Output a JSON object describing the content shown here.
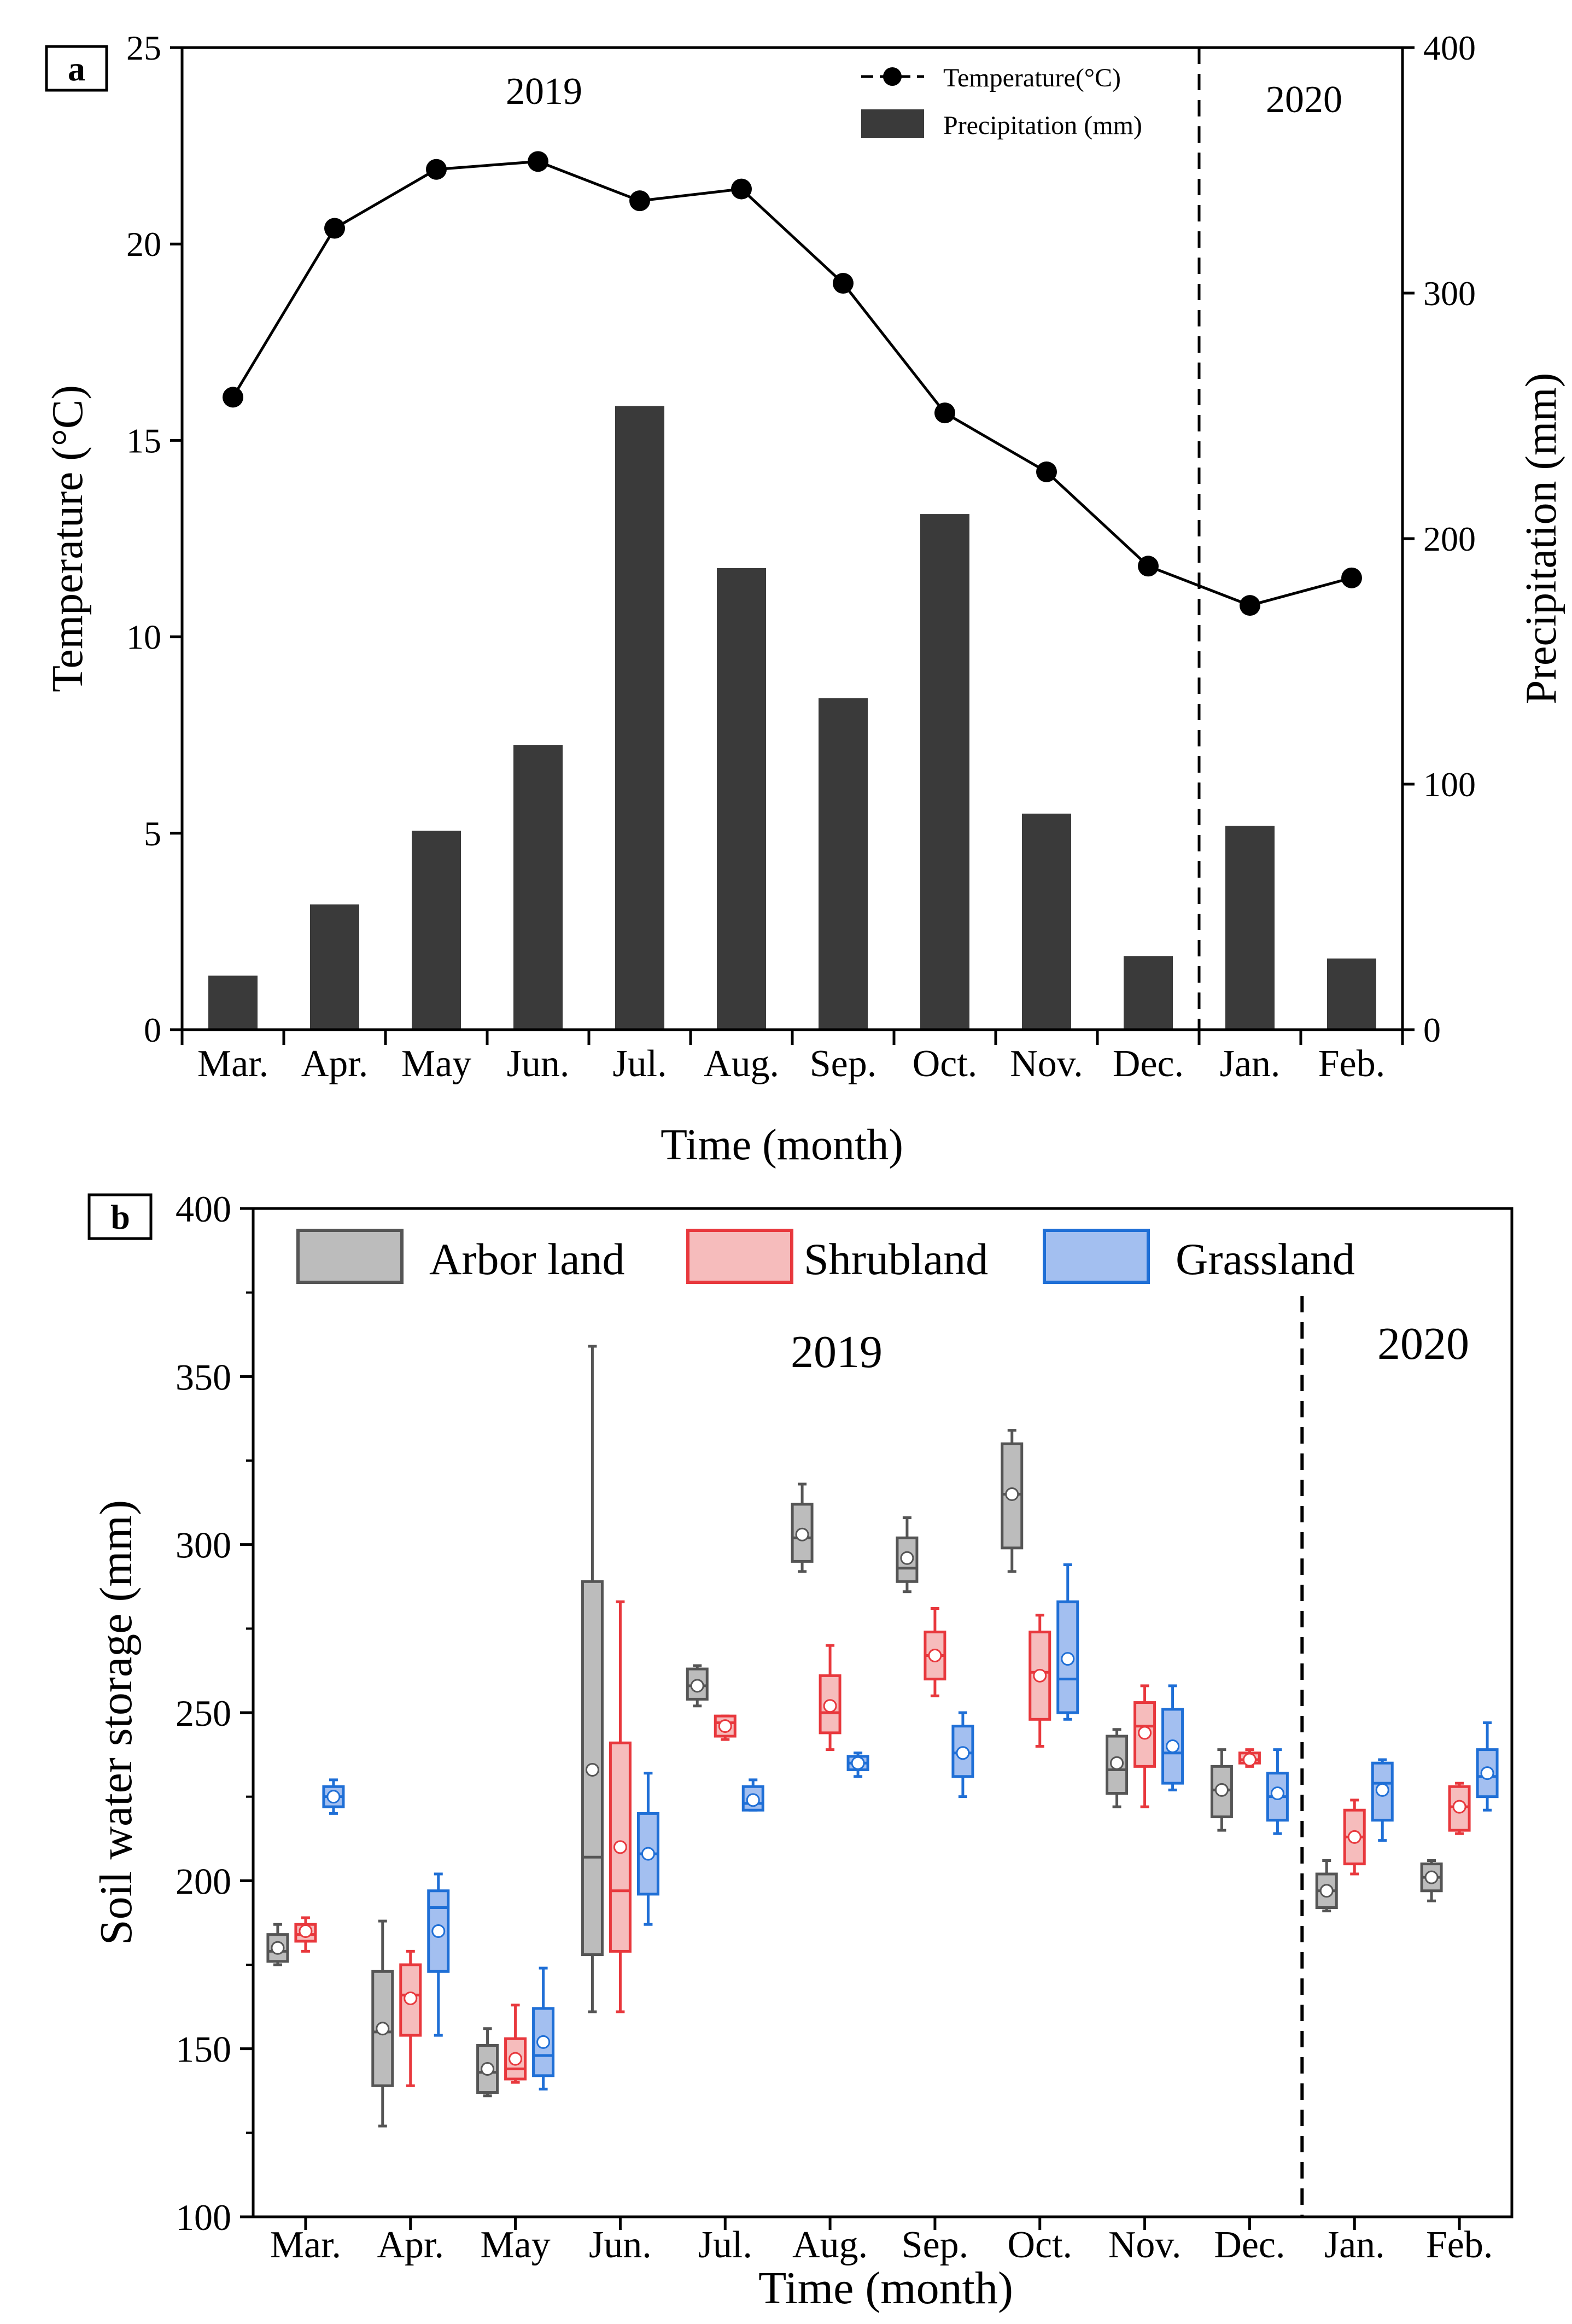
{
  "chart_data": [
    {
      "type": "bar+line",
      "panel_label": "a",
      "categories": [
        "Mar.",
        "Apr.",
        "May",
        "Jun.",
        "Jul.",
        "Aug.",
        "Sep.",
        "Oct.",
        "Nov.",
        "Dec.",
        "Jan.",
        "Feb."
      ],
      "temperature": [
        16.1,
        20.4,
        21.9,
        22.1,
        21.1,
        21.4,
        19.0,
        15.7,
        14.2,
        11.8,
        10.8,
        11.5
      ],
      "precipitation": [
        22,
        51,
        81,
        116,
        254,
        188,
        135,
        210,
        88,
        30,
        83,
        29
      ],
      "xlabel": "Time (month)",
      "ylabel_left": "Temperature (°C)",
      "ylabel_right": "Precipitation (mm)",
      "ylim_left": [
        0,
        25
      ],
      "ylim_right": [
        0,
        400
      ],
      "yticks_left": [
        "0",
        "5",
        "10",
        "15",
        "20",
        "25"
      ],
      "yticks_right": [
        "0",
        "100",
        "200",
        "300",
        "400"
      ],
      "legend": [
        "Temperature(°C)",
        "Precipitation (mm)"
      ],
      "year_labels": [
        "2019",
        "2020"
      ],
      "divider_after_category": "Dec.",
      "colors": {
        "bar": "#3a3a3a",
        "line": "#000000",
        "marker": "#000000"
      }
    },
    {
      "type": "box",
      "panel_label": "b",
      "categories": [
        "Mar.",
        "Apr.",
        "May",
        "Jun.",
        "Jul.",
        "Aug.",
        "Sep.",
        "Oct.",
        "Nov.",
        "Dec.",
        "Jan.",
        "Feb."
      ],
      "xlabel": "Time (month)",
      "ylabel": "Soil water storage (mm)",
      "ylim": [
        100,
        400
      ],
      "yticks": [
        "100",
        "150",
        "200",
        "250",
        "300",
        "350",
        "400"
      ],
      "legend_position": "top",
      "year_labels": [
        "2019",
        "2020"
      ],
      "divider_after_category": "Dec.",
      "series": [
        {
          "name": "Arbor land",
          "edge": "#555555",
          "fill": "#bcbcbc",
          "boxes": [
            {
              "min": 175,
              "q1": 176,
              "median": 179,
              "q3": 184,
              "max": 187,
              "mean": 180
            },
            {
              "min": 127,
              "q1": 139,
              "median": 155,
              "q3": 173,
              "max": 188,
              "mean": 156
            },
            {
              "min": 136,
              "q1": 137,
              "median": 143,
              "q3": 151,
              "max": 156,
              "mean": 144
            },
            {
              "min": 161,
              "q1": 178,
              "median": 207,
              "q3": 289,
              "max": 359,
              "mean": 233
            },
            {
              "min": 252,
              "q1": 254,
              "median": 258,
              "q3": 263,
              "max": 264,
              "mean": 258
            },
            {
              "min": 292,
              "q1": 295,
              "median": 302,
              "q3": 312,
              "max": 318,
              "mean": 303
            },
            {
              "min": 286,
              "q1": 289,
              "median": 293,
              "q3": 302,
              "max": 308,
              "mean": 296
            },
            {
              "min": 292,
              "q1": 299,
              "median": 315,
              "q3": 330,
              "max": 334,
              "mean": 315
            },
            {
              "min": 222,
              "q1": 226,
              "median": 233,
              "q3": 243,
              "max": 245,
              "mean": 235
            },
            {
              "min": 215,
              "q1": 219,
              "median": 227,
              "q3": 234,
              "max": 239,
              "mean": 227
            },
            {
              "min": 191,
              "q1": 192,
              "median": 197,
              "q3": 202,
              "max": 206,
              "mean": 197
            },
            {
              "min": 194,
              "q1": 197,
              "median": 201,
              "q3": 205,
              "max": 206,
              "mean": 201
            }
          ]
        },
        {
          "name": "Shrubland",
          "edge": "#e8383d",
          "fill": "#f6bcbc",
          "boxes": [
            {
              "min": 179,
              "q1": 182,
              "median": 184,
              "q3": 187,
              "max": 189,
              "mean": 185
            },
            {
              "min": 139,
              "q1": 154,
              "median": 166,
              "q3": 175,
              "max": 179,
              "mean": 165
            },
            {
              "min": 140,
              "q1": 141,
              "median": 144,
              "q3": 153,
              "max": 163,
              "mean": 147
            },
            {
              "min": 161,
              "q1": 179,
              "median": 197,
              "q3": 241,
              "max": 283,
              "mean": 210
            },
            {
              "min": 242,
              "q1": 243,
              "median": 247,
              "q3": 249,
              "max": 249,
              "mean": 246
            },
            {
              "min": 239,
              "q1": 244,
              "median": 250,
              "q3": 261,
              "max": 270,
              "mean": 252
            },
            {
              "min": 255,
              "q1": 260,
              "median": 267,
              "q3": 274,
              "max": 281,
              "mean": 267
            },
            {
              "min": 240,
              "q1": 248,
              "median": 262,
              "q3": 274,
              "max": 279,
              "mean": 261
            },
            {
              "min": 222,
              "q1": 234,
              "median": 246,
              "q3": 253,
              "max": 258,
              "mean": 244
            },
            {
              "min": 234,
              "q1": 235,
              "median": 236,
              "q3": 238,
              "max": 239,
              "mean": 236
            },
            {
              "min": 202,
              "q1": 205,
              "median": 213,
              "q3": 221,
              "max": 224,
              "mean": 213
            },
            {
              "min": 214,
              "q1": 215,
              "median": 222,
              "q3": 228,
              "max": 229,
              "mean": 222
            }
          ]
        },
        {
          "name": "Grassland",
          "edge": "#1f6fd6",
          "fill": "#a3bff0",
          "boxes": [
            {
              "min": 220,
              "q1": 222,
              "median": 225,
              "q3": 228,
              "max": 230,
              "mean": 225
            },
            {
              "min": 154,
              "q1": 173,
              "median": 192,
              "q3": 197,
              "max": 202,
              "mean": 185
            },
            {
              "min": 138,
              "q1": 142,
              "median": 148,
              "q3": 162,
              "max": 174,
              "mean": 152
            },
            {
              "min": 187,
              "q1": 196,
              "median": 208,
              "q3": 220,
              "max": 232,
              "mean": 208
            },
            {
              "min": 221,
              "q1": 221,
              "median": 223,
              "q3": 228,
              "max": 230,
              "mean": 224
            },
            {
              "min": 231,
              "q1": 233,
              "median": 235,
              "q3": 237,
              "max": 238,
              "mean": 235
            },
            {
              "min": 225,
              "q1": 231,
              "median": 238,
              "q3": 246,
              "max": 250,
              "mean": 238
            },
            {
              "min": 248,
              "q1": 250,
              "median": 260,
              "q3": 283,
              "max": 294,
              "mean": 266
            },
            {
              "min": 227,
              "q1": 229,
              "median": 238,
              "q3": 251,
              "max": 258,
              "mean": 240
            },
            {
              "min": 214,
              "q1": 218,
              "median": 225,
              "q3": 232,
              "max": 239,
              "mean": 226
            },
            {
              "min": 212,
              "q1": 218,
              "median": 229,
              "q3": 235,
              "max": 236,
              "mean": 227
            },
            {
              "min": 221,
              "q1": 225,
              "median": 231,
              "q3": 239,
              "max": 247,
              "mean": 232
            }
          ]
        }
      ]
    }
  ]
}
